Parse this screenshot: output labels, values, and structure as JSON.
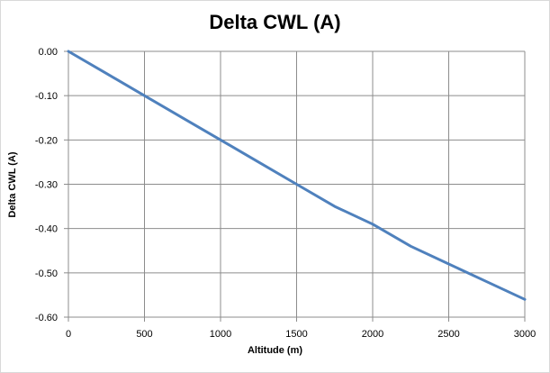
{
  "chart_data": {
    "type": "line",
    "title": "Delta CWL (A)",
    "xlabel": "Altitude (m)",
    "ylabel": "Delta CWL (A)",
    "xlim": [
      0,
      3000
    ],
    "ylim": [
      -0.6,
      0.0
    ],
    "x_ticks": [
      "0",
      "500",
      "1000",
      "1500",
      "2000",
      "2500",
      "3000"
    ],
    "y_ticks": [
      "0.00",
      "-0.10",
      "-0.20",
      "-0.30",
      "-0.40",
      "-0.50",
      "-0.60"
    ],
    "grid": true,
    "legend": "none",
    "series": [
      {
        "color": "#4f81bd",
        "x": [
          0,
          250,
          500,
          750,
          1000,
          1250,
          1500,
          1750,
          2000,
          2250,
          2500,
          2750,
          3000
        ],
        "y": [
          0.0,
          -0.05,
          -0.1,
          -0.15,
          -0.2,
          -0.25,
          -0.3,
          -0.35,
          -0.39,
          -0.44,
          -0.48,
          -0.52,
          -0.56
        ]
      }
    ]
  }
}
